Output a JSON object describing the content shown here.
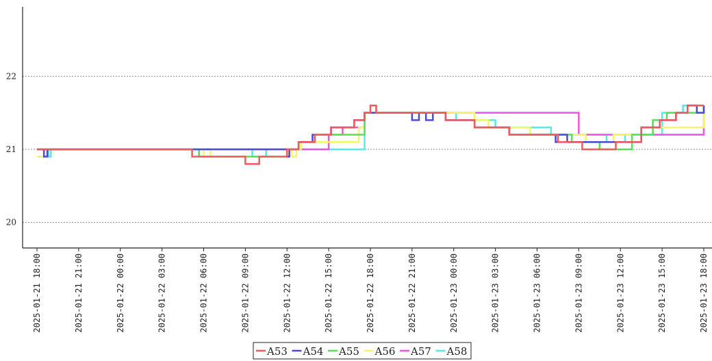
{
  "chart_data": {
    "type": "line",
    "title": "",
    "xlabel": "",
    "ylabel": "",
    "ylim": [
      19.65,
      22.95
    ],
    "y_ticks": [
      "20",
      "21",
      "22"
    ],
    "x_tick_labels": [
      "2025-01-21 18:00",
      "2025-01-21 21:00",
      "2025-01-22 00:00",
      "2025-01-22 03:00",
      "2025-01-22 06:00",
      "2025-01-22 09:00",
      "2025-01-22 12:00",
      "2025-01-22 15:00",
      "2025-01-22 18:00",
      "2025-01-22 21:00",
      "2025-01-23 00:00",
      "2025-01-23 03:00",
      "2025-01-23 06:00",
      "2025-01-23 09:00",
      "2025-01-23 12:00",
      "2025-01-23 15:00",
      "2025-01-23 18:00"
    ],
    "x_range": [
      "2025-01-21 18:00",
      "2025-01-23 18:00"
    ],
    "grid": "horizontal dotted",
    "legend_position": "bottom",
    "line_style": "step",
    "series": [
      {
        "name": "A53",
        "color": "#f05a5a",
        "points": [
          [
            "2025-01-21 18:00",
            21.0
          ],
          [
            "2025-01-22 05:10",
            20.9
          ],
          [
            "2025-01-22 09:00",
            20.8
          ],
          [
            "2025-01-22 10:00",
            20.9
          ],
          [
            "2025-01-22 12:00",
            21.0
          ],
          [
            "2025-01-22 12:50",
            21.1
          ],
          [
            "2025-01-22 14:00",
            21.2
          ],
          [
            "2025-01-22 15:10",
            21.3
          ],
          [
            "2025-01-22 16:50",
            21.4
          ],
          [
            "2025-01-22 17:35",
            21.5
          ],
          [
            "2025-01-22 18:00",
            21.6
          ],
          [
            "2025-01-22 18:25",
            21.5
          ],
          [
            "2025-01-22 23:25",
            21.4
          ],
          [
            "2025-01-23 01:30",
            21.3
          ],
          [
            "2025-01-23 04:00",
            21.2
          ],
          [
            "2025-01-23 07:30",
            21.1
          ],
          [
            "2025-01-23 09:15",
            21.0
          ],
          [
            "2025-01-23 11:40",
            21.1
          ],
          [
            "2025-01-23 13:30",
            21.3
          ],
          [
            "2025-01-23 14:50",
            21.4
          ],
          [
            "2025-01-23 16:00",
            21.5
          ],
          [
            "2025-01-23 16:50",
            21.6
          ],
          [
            "2025-01-23 18:00",
            21.6
          ]
        ]
      },
      {
        "name": "A54",
        "color": "#4a4ae0",
        "points": [
          [
            "2025-01-21 18:00",
            21.0
          ],
          [
            "2025-01-21 18:30",
            20.9
          ],
          [
            "2025-01-21 18:45",
            21.0
          ],
          [
            "2025-01-22 12:00",
            20.9
          ],
          [
            "2025-01-22 12:10",
            21.0
          ],
          [
            "2025-01-22 12:50",
            21.1
          ],
          [
            "2025-01-22 13:50",
            21.2
          ],
          [
            "2025-01-22 15:10",
            21.3
          ],
          [
            "2025-01-22 16:50",
            21.4
          ],
          [
            "2025-01-22 17:35",
            21.5
          ],
          [
            "2025-01-22 21:00",
            21.4
          ],
          [
            "2025-01-22 21:30",
            21.5
          ],
          [
            "2025-01-22 22:00",
            21.4
          ],
          [
            "2025-01-22 22:30",
            21.5
          ],
          [
            "2025-01-22 23:25",
            21.4
          ],
          [
            "2025-01-23 01:30",
            21.3
          ],
          [
            "2025-01-23 04:00",
            21.2
          ],
          [
            "2025-01-23 07:20",
            21.1
          ],
          [
            "2025-01-23 07:30",
            21.2
          ],
          [
            "2025-01-23 08:10",
            21.1
          ],
          [
            "2025-01-23 11:40",
            21.1
          ],
          [
            "2025-01-23 13:30",
            21.3
          ],
          [
            "2025-01-23 14:50",
            21.4
          ],
          [
            "2025-01-23 16:00",
            21.5
          ],
          [
            "2025-01-23 16:50",
            21.6
          ],
          [
            "2025-01-23 17:30",
            21.5
          ],
          [
            "2025-01-23 18:00",
            21.6
          ]
        ]
      },
      {
        "name": "A55",
        "color": "#55e055",
        "points": [
          [
            "2025-01-21 18:00",
            21.0
          ],
          [
            "2025-01-22 05:10",
            21.0
          ],
          [
            "2025-01-22 05:40",
            20.9
          ],
          [
            "2025-01-22 12:10",
            21.0
          ],
          [
            "2025-01-22 12:50",
            21.1
          ],
          [
            "2025-01-22 14:00",
            21.2
          ],
          [
            "2025-01-22 17:35",
            21.5
          ],
          [
            "2025-01-22 23:25",
            21.4
          ],
          [
            "2025-01-23 01:00",
            21.4
          ],
          [
            "2025-01-23 01:30",
            21.3
          ],
          [
            "2025-01-23 04:00",
            21.2
          ],
          [
            "2025-01-23 08:30",
            21.1
          ],
          [
            "2025-01-23 10:30",
            21.0
          ],
          [
            "2025-01-23 12:50",
            21.2
          ],
          [
            "2025-01-23 14:20",
            21.4
          ],
          [
            "2025-01-23 15:20",
            21.5
          ],
          [
            "2025-01-23 18:00",
            21.6
          ]
        ]
      },
      {
        "name": "A56",
        "color": "#f5f56a",
        "points": [
          [
            "2025-01-21 18:00",
            20.9
          ],
          [
            "2025-01-21 18:40",
            21.0
          ],
          [
            "2025-01-22 06:00",
            20.9
          ],
          [
            "2025-01-22 06:30",
            21.0
          ],
          [
            "2025-01-22 12:20",
            20.9
          ],
          [
            "2025-01-22 12:40",
            21.0
          ],
          [
            "2025-01-22 13:00",
            21.1
          ],
          [
            "2025-01-22 17:10",
            21.3
          ],
          [
            "2025-01-22 17:35",
            21.5
          ],
          [
            "2025-01-23 01:30",
            21.4
          ],
          [
            "2025-01-23 02:30",
            21.3
          ],
          [
            "2025-01-23 05:00",
            21.3
          ],
          [
            "2025-01-23 05:30",
            21.2
          ],
          [
            "2025-01-23 09:30",
            21.1
          ],
          [
            "2025-01-23 11:30",
            21.2
          ],
          [
            "2025-01-23 13:30",
            21.3
          ],
          [
            "2025-01-23 18:00",
            21.6
          ]
        ]
      },
      {
        "name": "A57",
        "color": "#e855e8",
        "points": [
          [
            "2025-01-21 18:00",
            21.0
          ],
          [
            "2025-01-22 15:00",
            21.2
          ],
          [
            "2025-01-22 16:00",
            21.3
          ],
          [
            "2025-01-22 17:35",
            21.5
          ],
          [
            "2025-01-23 09:00",
            21.2
          ],
          [
            "2025-01-23 18:00",
            21.6
          ]
        ]
      },
      {
        "name": "A58",
        "color": "#55eaea",
        "points": [
          [
            "2025-01-21 18:00",
            21.0
          ],
          [
            "2025-01-21 18:50",
            20.9
          ],
          [
            "2025-01-21 19:00",
            21.0
          ],
          [
            "2025-01-22 09:30",
            20.9
          ],
          [
            "2025-01-22 10:30",
            21.0
          ],
          [
            "2025-01-22 12:00",
            21.0
          ],
          [
            "2025-01-22 17:35",
            21.5
          ],
          [
            "2025-01-22 23:00",
            21.5
          ],
          [
            "2025-01-23 00:10",
            21.4
          ],
          [
            "2025-01-23 02:30",
            21.4
          ],
          [
            "2025-01-23 03:00",
            21.3
          ],
          [
            "2025-01-23 06:30",
            21.3
          ],
          [
            "2025-01-23 07:00",
            21.2
          ],
          [
            "2025-01-23 10:30",
            21.2
          ],
          [
            "2025-01-23 11:00",
            21.1
          ],
          [
            "2025-01-23 12:20",
            21.2
          ],
          [
            "2025-01-23 15:00",
            21.5
          ],
          [
            "2025-01-23 16:30",
            21.6
          ],
          [
            "2025-01-23 18:00",
            21.6
          ]
        ]
      }
    ]
  }
}
